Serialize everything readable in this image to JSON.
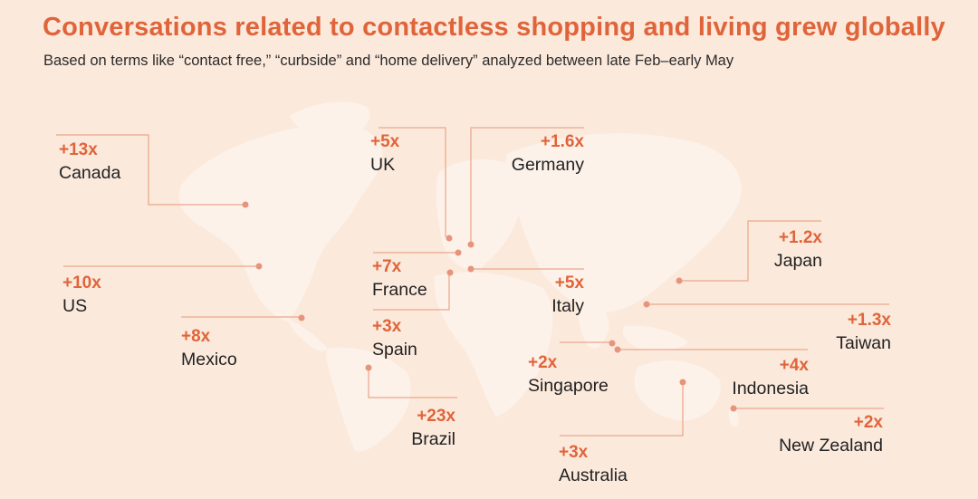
{
  "title": "Conversations related to contactless shopping and living grew globally",
  "subtitle": "Based on terms like “contact free,” “curbside” and “home delivery” analyzed between late Feb–early May",
  "colors": {
    "accent": "#e0643a",
    "line": "#eeb29a",
    "dot": "#e6957c",
    "land": "#fdf2ea",
    "background": "#fbe9dc"
  },
  "countries": [
    {
      "id": "canada",
      "country": "Canada",
      "growth": "+13x"
    },
    {
      "id": "uk",
      "country": "UK",
      "growth": "+5x"
    },
    {
      "id": "germany",
      "country": "Germany",
      "growth": "+1.6x"
    },
    {
      "id": "us",
      "country": "US",
      "growth": "+10x"
    },
    {
      "id": "france",
      "country": "France",
      "growth": "+7x"
    },
    {
      "id": "italy",
      "country": "Italy",
      "growth": "+5x"
    },
    {
      "id": "japan",
      "country": "Japan",
      "growth": "+1.2x"
    },
    {
      "id": "mexico",
      "country": "Mexico",
      "growth": "+8x"
    },
    {
      "id": "spain",
      "country": "Spain",
      "growth": "+3x"
    },
    {
      "id": "taiwan",
      "country": "Taiwan",
      "growth": "+1.3x"
    },
    {
      "id": "singapore",
      "country": "Singapore",
      "growth": "+2x"
    },
    {
      "id": "indonesia",
      "country": "Indonesia",
      "growth": "+4x"
    },
    {
      "id": "brazil",
      "country": "Brazil",
      "growth": "+23x"
    },
    {
      "id": "new-zealand",
      "country": "New Zealand",
      "growth": "+2x"
    },
    {
      "id": "australia",
      "country": "Australia",
      "growth": "+3x"
    }
  ]
}
